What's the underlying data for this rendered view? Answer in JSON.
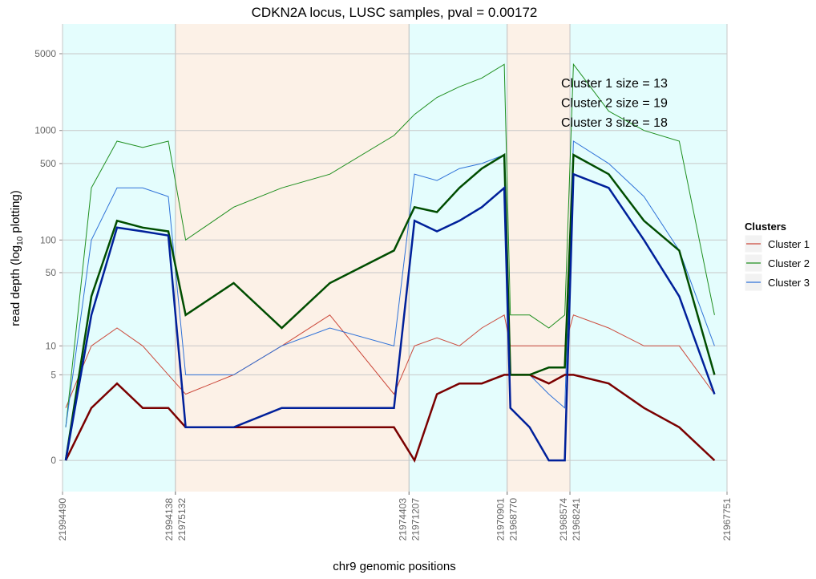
{
  "chart_data": {
    "type": "line",
    "title": "CDKN2A locus, LUSC samples, pval = 0.00172",
    "xlabel": "chr9 genomic positions",
    "ylabel_parts": [
      "read depth (log",
      "10",
      " plotting)"
    ],
    "yscale": "log10(y+1)",
    "ylim": [
      -0.48,
      9300
    ],
    "yticks": [
      0,
      5,
      10,
      50,
      100,
      500,
      1000,
      5000
    ],
    "grid": true,
    "regions": [
      {
        "start": 21994490,
        "end": 21994138,
        "color": "#e4fdfd"
      },
      {
        "start": 21975132,
        "end": 21974403,
        "color": "#fcf1e7"
      },
      {
        "start": 21971207,
        "end": 21970901,
        "color": "#e4fdfd"
      },
      {
        "start": 21968770,
        "end": 21968574,
        "color": "#fcf1e7"
      },
      {
        "start": 21968241,
        "end": 21967751,
        "color": "#e4fdfd"
      }
    ],
    "x": [
      21994480,
      21994400,
      21994320,
      21994240,
      21994160,
      21975100,
      21974950,
      21974800,
      21974650,
      21974450,
      21971190,
      21971120,
      21971050,
      21970980,
      21970910,
      21968760,
      21968700,
      21968640,
      21968590,
      21968230,
      21968120,
      21968010,
      21967900,
      21967790
    ],
    "series": [
      {
        "name": "Cluster 1",
        "color": "#cc4a3c",
        "mean_color": "#7a0000",
        "lines": [
          [
            2,
            10,
            15,
            10,
            5,
            3,
            5,
            10,
            20,
            3,
            10,
            12,
            10,
            15,
            20,
            10,
            10,
            10,
            10,
            20,
            15,
            10,
            10,
            3
          ]
        ],
        "mean": [
          0,
          2,
          4,
          2,
          2,
          1,
          1,
          1,
          1,
          1,
          0,
          3,
          4,
          4,
          5,
          5,
          5,
          4,
          5,
          5,
          4,
          2,
          1,
          0
        ]
      },
      {
        "name": "Cluster 2",
        "color": "#1f8f1f",
        "mean_color": "#004d00",
        "lines": [
          [
            1,
            300,
            800,
            700,
            800,
            100,
            200,
            300,
            400,
            900,
            1400,
            2000,
            2500,
            3000,
            4000,
            20,
            20,
            15,
            20,
            4000,
            1500,
            1000,
            800,
            20
          ]
        ],
        "mean": [
          0,
          30,
          150,
          130,
          120,
          20,
          40,
          15,
          40,
          80,
          200,
          180,
          300,
          450,
          600,
          5,
          5,
          6,
          6,
          600,
          400,
          150,
          80,
          5
        ]
      },
      {
        "name": "Cluster 3",
        "color": "#2f72d8",
        "mean_color": "#00209a",
        "lines": [
          [
            1,
            100,
            300,
            300,
            250,
            5,
            5,
            10,
            15,
            10,
            400,
            350,
            450,
            500,
            600,
            5,
            5,
            3,
            2,
            800,
            500,
            250,
            80,
            10
          ]
        ],
        "mean": [
          0,
          20,
          130,
          120,
          110,
          1,
          1,
          2,
          2,
          2,
          150,
          120,
          150,
          200,
          300,
          2,
          1,
          0,
          0,
          400,
          300,
          100,
          30,
          3
        ]
      }
    ],
    "legend_title": "Clusters",
    "annotations": [
      "Cluster 1 size = 13",
      "Cluster 2 size = 19",
      "Cluster 3 size = 18"
    ]
  }
}
